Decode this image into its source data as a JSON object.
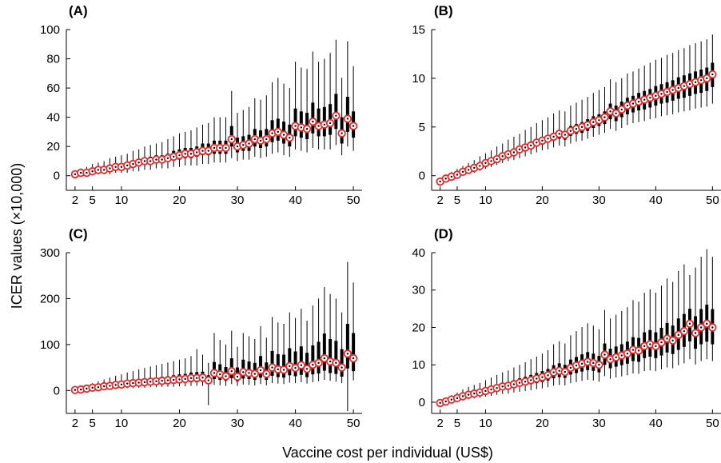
{
  "figure": {
    "xlabel": "Vaccine cost per individual (US$)",
    "ylabel": "ICER values (×10,000)"
  },
  "colors": {
    "box": "#000000",
    "median_marker": "#e8282a",
    "axis": "#000000"
  },
  "chart_data": [
    {
      "type": "box",
      "panel_label": "(A)",
      "x": [
        2,
        3,
        4,
        5,
        6,
        7,
        8,
        9,
        10,
        11,
        12,
        13,
        14,
        15,
        16,
        17,
        18,
        19,
        20,
        21,
        22,
        23,
        24,
        25,
        26,
        27,
        28,
        29,
        30,
        31,
        32,
        33,
        34,
        35,
        36,
        37,
        38,
        39,
        40,
        41,
        42,
        43,
        44,
        45,
        46,
        47,
        48,
        49,
        50
      ],
      "xticks": [
        2,
        5,
        10,
        20,
        30,
        40,
        50
      ],
      "xlim": [
        0.5,
        51.5
      ],
      "yticks": [
        0,
        20,
        40,
        60,
        80,
        100
      ],
      "ylim": [
        -10,
        100
      ],
      "median": [
        1,
        2,
        2,
        3,
        4,
        4,
        5,
        6,
        6,
        7,
        8,
        9,
        10,
        10,
        11,
        11,
        12,
        13,
        14,
        15,
        15,
        16,
        17,
        17,
        19,
        19,
        19,
        25,
        20,
        21,
        22,
        25,
        24,
        25,
        29,
        30,
        28,
        26,
        34,
        33,
        32,
        37,
        34,
        35,
        36,
        41,
        29,
        39,
        34
      ],
      "q1": [
        0,
        1,
        1,
        2,
        3,
        3,
        4,
        4,
        5,
        5,
        6,
        7,
        8,
        8,
        9,
        9,
        10,
        11,
        11,
        12,
        12,
        13,
        14,
        14,
        15,
        15,
        15,
        20,
        16,
        17,
        17,
        20,
        19,
        20,
        23,
        24,
        22,
        20,
        27,
        26,
        25,
        29,
        27,
        27,
        28,
        32,
        22,
        30,
        26
      ],
      "q3": [
        2,
        3,
        3,
        5,
        5,
        6,
        7,
        8,
        8,
        9,
        10,
        11,
        12,
        13,
        14,
        14,
        15,
        17,
        18,
        19,
        19,
        20,
        22,
        22,
        24,
        24,
        24,
        34,
        26,
        27,
        28,
        32,
        31,
        32,
        38,
        39,
        37,
        35,
        46,
        44,
        43,
        50,
        46,
        47,
        49,
        56,
        40,
        54,
        44
      ],
      "whisker_low": [
        0,
        0,
        0,
        1,
        1,
        1,
        1,
        2,
        2,
        2,
        3,
        3,
        4,
        4,
        5,
        5,
        5,
        6,
        6,
        7,
        7,
        7,
        8,
        8,
        9,
        9,
        9,
        12,
        10,
        11,
        11,
        13,
        12,
        13,
        15,
        16,
        14,
        13,
        18,
        17,
        16,
        19,
        18,
        18,
        18,
        21,
        14,
        20,
        17
      ],
      "whisker_high": [
        3,
        5,
        6,
        8,
        9,
        10,
        12,
        13,
        14,
        15,
        17,
        18,
        20,
        21,
        22,
        23,
        25,
        27,
        29,
        30,
        31,
        33,
        35,
        36,
        40,
        40,
        40,
        58,
        43,
        45,
        47,
        53,
        52,
        55,
        64,
        67,
        63,
        60,
        78,
        74,
        73,
        85,
        78,
        80,
        84,
        93,
        67,
        92,
        75
      ]
    },
    {
      "type": "box",
      "panel_label": "(B)",
      "x": [
        2,
        3,
        4,
        5,
        6,
        7,
        8,
        9,
        10,
        11,
        12,
        13,
        14,
        15,
        16,
        17,
        18,
        19,
        20,
        21,
        22,
        23,
        24,
        25,
        26,
        27,
        28,
        29,
        30,
        31,
        32,
        33,
        34,
        35,
        36,
        37,
        38,
        39,
        40,
        41,
        42,
        43,
        44,
        45,
        46,
        47,
        48,
        49,
        50
      ],
      "xticks": [
        2,
        5,
        10,
        20,
        30,
        40,
        50
      ],
      "xlim": [
        0.5,
        51.5
      ],
      "yticks": [
        0,
        5,
        10,
        15
      ],
      "ylim": [
        -1.5,
        15
      ],
      "median": [
        -0.6,
        -0.3,
        -0.1,
        0.1,
        0.4,
        0.6,
        0.8,
        1.0,
        1.3,
        1.5,
        1.7,
        2.0,
        2.2,
        2.4,
        2.7,
        2.9,
        3.1,
        3.4,
        3.6,
        3.8,
        4.0,
        4.3,
        4.2,
        4.6,
        4.8,
        5.0,
        5.2,
        5.5,
        5.7,
        6.0,
        6.6,
        6.4,
        6.8,
        7.2,
        7.4,
        7.6,
        7.8,
        8.0,
        8.2,
        8.4,
        8.6,
        8.8,
        9.0,
        9.2,
        9.4,
        9.6,
        9.8,
        10.0,
        10.4
      ],
      "q1": [
        -0.7,
        -0.4,
        -0.2,
        0.0,
        0.3,
        0.5,
        0.7,
        0.9,
        1.1,
        1.3,
        1.5,
        1.8,
        2.0,
        2.2,
        2.4,
        2.6,
        2.8,
        3.0,
        3.2,
        3.4,
        3.6,
        3.8,
        3.7,
        4.1,
        4.3,
        4.4,
        4.6,
        4.9,
        5.1,
        5.3,
        5.8,
        5.6,
        6.0,
        6.3,
        6.5,
        6.7,
        6.8,
        7.0,
        7.2,
        7.4,
        7.5,
        7.7,
        7.9,
        8.0,
        8.2,
        8.4,
        8.5,
        8.7,
        9.1
      ],
      "q3": [
        -0.5,
        -0.2,
        0.0,
        0.2,
        0.5,
        0.7,
        0.9,
        1.2,
        1.4,
        1.7,
        1.9,
        2.2,
        2.4,
        2.7,
        2.9,
        3.1,
        3.4,
        3.7,
        3.9,
        4.2,
        4.4,
        4.7,
        4.6,
        5.1,
        5.3,
        5.5,
        5.8,
        6.1,
        6.3,
        6.6,
        7.4,
        7.2,
        7.6,
        8.0,
        8.2,
        8.5,
        8.7,
        8.9,
        9.2,
        9.4,
        9.6,
        9.8,
        10.1,
        10.3,
        10.5,
        10.7,
        10.9,
        11.1,
        11.6
      ],
      "whisker_low": [
        -0.8,
        -0.6,
        -0.4,
        -0.2,
        0.0,
        0.2,
        0.3,
        0.5,
        0.7,
        0.9,
        1.1,
        1.3,
        1.5,
        1.6,
        1.8,
        2.0,
        2.2,
        2.4,
        2.6,
        2.7,
        2.9,
        3.1,
        3.0,
        3.3,
        3.5,
        3.6,
        3.8,
        4.0,
        4.2,
        4.4,
        4.8,
        4.6,
        4.9,
        5.2,
        5.4,
        5.5,
        5.6,
        5.8,
        5.9,
        6.1,
        6.2,
        6.3,
        6.5,
        6.6,
        6.7,
        6.9,
        7.0,
        7.1,
        7.4
      ],
      "whisker_high": [
        -0.3,
        0.1,
        0.4,
        0.7,
        1.0,
        1.3,
        1.6,
        2.0,
        2.3,
        2.6,
        3.0,
        3.3,
        3.7,
        4.0,
        4.3,
        4.7,
        5.0,
        5.4,
        5.7,
        6.0,
        6.4,
        6.7,
        6.6,
        7.2,
        7.5,
        7.8,
        8.1,
        8.5,
        8.8,
        9.1,
        9.9,
        9.6,
        10.0,
        10.5,
        10.7,
        11.0,
        11.3,
        11.6,
        11.9,
        12.1,
        12.4,
        12.6,
        12.9,
        13.1,
        13.4,
        13.6,
        13.8,
        14.0,
        14.5
      ]
    },
    {
      "type": "box",
      "panel_label": "(C)",
      "x": [
        2,
        3,
        4,
        5,
        6,
        7,
        8,
        9,
        10,
        11,
        12,
        13,
        14,
        15,
        16,
        17,
        18,
        19,
        20,
        21,
        22,
        23,
        24,
        25,
        26,
        27,
        28,
        29,
        30,
        31,
        32,
        33,
        34,
        35,
        36,
        37,
        38,
        39,
        40,
        41,
        42,
        43,
        44,
        45,
        46,
        47,
        48,
        49,
        50
      ],
      "xticks": [
        2,
        5,
        10,
        20,
        30,
        40,
        50
      ],
      "xlim": [
        0.5,
        51.5
      ],
      "yticks": [
        0,
        100,
        200,
        300
      ],
      "ylim": [
        -50,
        300
      ],
      "median": [
        1,
        2,
        4,
        6,
        7,
        9,
        10,
        12,
        13,
        15,
        16,
        17,
        18,
        19,
        20,
        21,
        22,
        23,
        24,
        25,
        27,
        27,
        28,
        22,
        38,
        35,
        31,
        42,
        30,
        40,
        38,
        36,
        44,
        36,
        50,
        46,
        45,
        53,
        49,
        55,
        47,
        56,
        60,
        70,
        63,
        60,
        50,
        80,
        70
      ],
      "q1": [
        0,
        1,
        2,
        4,
        5,
        6,
        7,
        8,
        9,
        10,
        11,
        12,
        13,
        13,
        14,
        15,
        15,
        16,
        17,
        17,
        18,
        18,
        19,
        15,
        25,
        23,
        21,
        27,
        20,
        26,
        25,
        23,
        28,
        23,
        32,
        29,
        28,
        33,
        31,
        34,
        29,
        35,
        37,
        43,
        38,
        36,
        30,
        48,
        42
      ],
      "q3": [
        2,
        4,
        6,
        8,
        10,
        12,
        14,
        16,
        18,
        20,
        22,
        24,
        25,
        27,
        28,
        30,
        31,
        33,
        35,
        36,
        39,
        40,
        41,
        33,
        62,
        57,
        51,
        70,
        50,
        67,
        63,
        60,
        75,
        61,
        86,
        79,
        78,
        92,
        85,
        96,
        82,
        98,
        106,
        124,
        112,
        108,
        90,
        145,
        125
      ],
      "whisker_low": [
        0,
        0,
        0,
        1,
        2,
        3,
        3,
        4,
        4,
        5,
        5,
        6,
        6,
        7,
        7,
        8,
        8,
        8,
        9,
        9,
        10,
        10,
        10,
        -32,
        12,
        11,
        10,
        14,
        10,
        13,
        12,
        11,
        14,
        11,
        16,
        15,
        14,
        17,
        16,
        18,
        15,
        18,
        20,
        23,
        21,
        19,
        16,
        -45,
        22
      ],
      "whisker_high": [
        5,
        8,
        12,
        16,
        20,
        24,
        28,
        32,
        35,
        39,
        42,
        46,
        49,
        52,
        55,
        58,
        61,
        64,
        67,
        70,
        75,
        90,
        78,
        60,
        125,
        110,
        100,
        130,
        95,
        125,
        118,
        112,
        140,
        115,
        160,
        148,
        145,
        170,
        158,
        178,
        152,
        185,
        200,
        225,
        210,
        200,
        170,
        280,
        235
      ]
    },
    {
      "type": "box",
      "panel_label": "(D)",
      "x": [
        2,
        3,
        4,
        5,
        6,
        7,
        8,
        9,
        10,
        11,
        12,
        13,
        14,
        15,
        16,
        17,
        18,
        19,
        20,
        21,
        22,
        23,
        24,
        25,
        26,
        27,
        28,
        29,
        30,
        31,
        32,
        33,
        34,
        35,
        36,
        37,
        38,
        39,
        40,
        41,
        42,
        43,
        44,
        45,
        46,
        47,
        48,
        49,
        50
      ],
      "xticks": [
        2,
        5,
        10,
        20,
        30,
        40,
        50
      ],
      "xlim": [
        0.5,
        51.5
      ],
      "yticks": [
        0,
        10,
        20,
        30,
        40
      ],
      "ylim": [
        -3,
        40
      ],
      "median": [
        -0.2,
        0.2,
        0.7,
        1.1,
        1.6,
        2.0,
        2.3,
        2.6,
        3.0,
        3.4,
        3.8,
        4.2,
        4.4,
        4.8,
        5.2,
        5.5,
        5.9,
        6.3,
        6.7,
        7.2,
        8.0,
        8.4,
        8.1,
        9.2,
        9.8,
        10.3,
        10.8,
        10.5,
        10.0,
        12.7,
        11.5,
        12.0,
        12.5,
        13.0,
        14.0,
        13.8,
        15.0,
        15.5,
        15.0,
        16.0,
        17.0,
        16.5,
        18.0,
        19.0,
        21.0,
        18.5,
        20.0,
        21.0,
        20.0
      ],
      "q1": [
        -0.4,
        0.0,
        0.4,
        0.8,
        1.2,
        1.6,
        1.9,
        2.1,
        2.5,
        2.8,
        3.1,
        3.4,
        3.6,
        3.9,
        4.2,
        4.5,
        4.8,
        5.1,
        5.4,
        5.8,
        6.4,
        6.7,
        6.5,
        7.4,
        7.8,
        8.2,
        8.6,
        8.4,
        8.0,
        10.0,
        9.1,
        9.5,
        9.9,
        10.3,
        11.0,
        10.8,
        11.8,
        12.2,
        11.8,
        12.5,
        13.3,
        12.9,
        14.0,
        14.8,
        16.3,
        14.3,
        15.5,
        16.2,
        15.5
      ],
      "q3": [
        0.1,
        0.5,
        1.0,
        1.5,
        2.0,
        2.5,
        2.8,
        3.2,
        3.7,
        4.1,
        4.6,
        5.1,
        5.4,
        5.9,
        6.4,
        6.8,
        7.3,
        7.8,
        8.3,
        8.9,
        9.9,
        10.4,
        10.0,
        11.4,
        12.1,
        12.8,
        13.4,
        13.0,
        12.4,
        15.7,
        14.3,
        14.9,
        15.5,
        16.2,
        17.4,
        17.2,
        18.7,
        19.3,
        18.7,
        19.9,
        21.2,
        20.5,
        22.4,
        23.6,
        25.0,
        23.0,
        24.9,
        26.1,
        24.9
      ],
      "whisker_low": [
        -0.6,
        -0.4,
        -0.1,
        0.2,
        0.5,
        0.8,
        1.0,
        1.2,
        1.5,
        1.7,
        2.0,
        2.2,
        2.3,
        2.6,
        2.8,
        3.0,
        3.2,
        3.5,
        3.7,
        4.0,
        4.4,
        4.6,
        4.5,
        5.1,
        5.4,
        5.7,
        6.0,
        5.8,
        5.5,
        7.0,
        6.3,
        6.6,
        6.9,
        7.2,
        7.7,
        7.6,
        8.3,
        8.5,
        8.3,
        8.8,
        9.3,
        9.1,
        9.9,
        10.4,
        11.5,
        10.1,
        11.0,
        11.5,
        11.0
      ],
      "whisker_high": [
        0.6,
        1.2,
        1.9,
        2.6,
        3.4,
        4.1,
        4.6,
        5.2,
        5.9,
        6.6,
        7.3,
        8.0,
        8.5,
        9.3,
        10.0,
        10.7,
        11.5,
        12.2,
        13.0,
        13.9,
        15.5,
        16.3,
        15.7,
        17.9,
        19.0,
        20.1,
        21.1,
        20.5,
        19.5,
        24.7,
        22.4,
        23.4,
        24.4,
        25.4,
        27.3,
        26.9,
        29.3,
        30.2,
        29.3,
        31.2,
        33.1,
        32.2,
        35.1,
        36.9,
        34.0,
        36.0,
        38.9,
        40.9,
        38.9
      ]
    }
  ]
}
